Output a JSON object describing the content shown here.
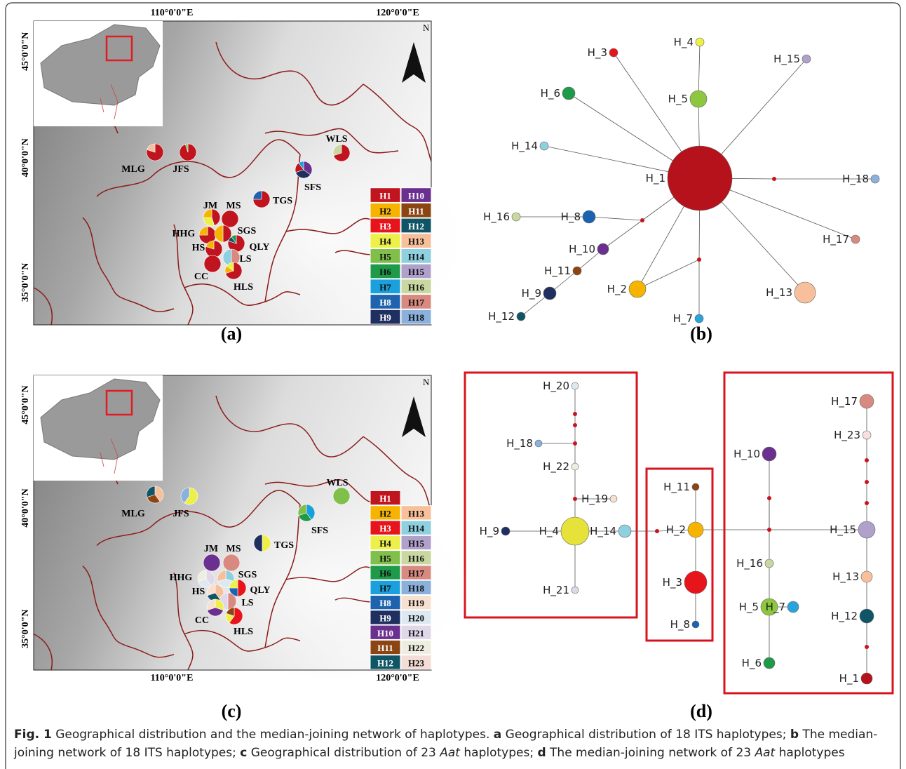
{
  "panel_a": {
    "tag": "(a)",
    "longitude_labels": [
      "110°0'0\"E",
      "120°0'0\"E"
    ],
    "latitude_labels": [
      "45°0'0\"N",
      "40°0'0\"N",
      "35°0'0\"N"
    ],
    "north": "N",
    "legend": [
      {
        "label": "H1",
        "color": "#c0141e"
      },
      {
        "label": "H2",
        "color": "#f6b300"
      },
      {
        "label": "H3",
        "color": "#e8141c"
      },
      {
        "label": "H4",
        "color": "#eef04a"
      },
      {
        "label": "H5",
        "color": "#7fbf4a"
      },
      {
        "label": "H6",
        "color": "#1f9a48"
      },
      {
        "label": "H7",
        "color": "#1aa0dc"
      },
      {
        "label": "H8",
        "color": "#1d63ad"
      },
      {
        "label": "H9",
        "color": "#1f2f5f"
      },
      {
        "label": "H10",
        "color": "#6a2f8f"
      },
      {
        "label": "H11",
        "color": "#8b4513"
      },
      {
        "label": "H12",
        "color": "#0f5566"
      },
      {
        "label": "H13",
        "color": "#f7c09a"
      },
      {
        "label": "H14",
        "color": "#8ecfe0"
      },
      {
        "label": "H15",
        "color": "#b0a0cc"
      },
      {
        "label": "H16",
        "color": "#c8d8a0"
      },
      {
        "label": "H17",
        "color": "#d88a80"
      },
      {
        "label": "H18",
        "color": "#8ab0dc"
      }
    ],
    "sites": [
      {
        "label": "MLG",
        "shares": {
          "H1": 80,
          "H13": 20
        }
      },
      {
        "label": "JFS",
        "shares": {
          "H1": 95,
          "H5": 5
        }
      },
      {
        "label": "WLS",
        "shares": {
          "H1": 70,
          "H16": 30
        }
      },
      {
        "label": "SFS",
        "shares": {
          "H10": 35,
          "H9": 35,
          "H1": 20,
          "H7": 10
        }
      },
      {
        "label": "TGS",
        "shares": {
          "H1": 75,
          "H8": 25
        }
      },
      {
        "label": "JM",
        "shares": {
          "H1": 45,
          "H4": 30,
          "H2": 25
        }
      },
      {
        "label": "MS",
        "shares": {
          "H1": 100
        }
      },
      {
        "label": "HHG",
        "shares": {
          "H1": 75,
          "H2": 25
        }
      },
      {
        "label": "SGS",
        "shares": {
          "H1": 50,
          "H2": 50
        }
      },
      {
        "label": "HS",
        "shares": {
          "H1": 80,
          "H2": 20
        }
      },
      {
        "label": "QLY",
        "shares": {
          "H1": 80,
          "H12": 10,
          "H6": 10
        }
      },
      {
        "label": "LS",
        "shares": {
          "H17": 50,
          "H14": 50
        }
      },
      {
        "label": "CC",
        "shares": {
          "H1": 100
        }
      },
      {
        "label": "HLS",
        "shares": {
          "H1": 70,
          "H2": 15,
          "H4": 15
        }
      }
    ]
  },
  "panel_b": {
    "tag": "(b)",
    "nodes": [
      {
        "label": "H_1",
        "color": "#b5121b"
      },
      {
        "label": "H_2",
        "color": "#f6b300"
      },
      {
        "label": "H_3",
        "color": "#e8141c"
      },
      {
        "label": "H_4",
        "color": "#eef04a"
      },
      {
        "label": "H_5",
        "color": "#8dc63f"
      },
      {
        "label": "H_6",
        "color": "#1f9a48"
      },
      {
        "label": "H_7",
        "color": "#29a3dc"
      },
      {
        "label": "H_8",
        "color": "#1a63b0"
      },
      {
        "label": "H_9",
        "color": "#1f2f5f"
      },
      {
        "label": "H_10",
        "color": "#6a2f8f"
      },
      {
        "label": "H_11",
        "color": "#8b4513"
      },
      {
        "label": "H_12",
        "color": "#0f5566"
      },
      {
        "label": "H_13",
        "color": "#f7c09a"
      },
      {
        "label": "H_14",
        "color": "#8ecfe0"
      },
      {
        "label": "H_15",
        "color": "#b0a0cc"
      },
      {
        "label": "H_16",
        "color": "#c8d8a0"
      },
      {
        "label": "H_17",
        "color": "#d88a80"
      },
      {
        "label": "H_18",
        "color": "#8ab0dc"
      }
    ]
  },
  "panel_c": {
    "tag": "(c)",
    "longitude_labels": [
      "110°0'0\"E",
      "120°0'0\"E"
    ],
    "latitude_labels": [
      "45°0'0\"N",
      "40°0'0\"N",
      "35°0'0\"N"
    ],
    "north": "N",
    "legend": [
      {
        "label": "H1",
        "color": "#c0141e"
      },
      {
        "label": "H2",
        "color": "#f6b300"
      },
      {
        "label": "H3",
        "color": "#e8141c"
      },
      {
        "label": "H4",
        "color": "#eef04a"
      },
      {
        "label": "H5",
        "color": "#7fbf4a"
      },
      {
        "label": "H6",
        "color": "#1f9a48"
      },
      {
        "label": "H7",
        "color": "#1aa0dc"
      },
      {
        "label": "H8",
        "color": "#1d63ad"
      },
      {
        "label": "H9",
        "color": "#1f2f5f"
      },
      {
        "label": "H10",
        "color": "#6a2f8f"
      },
      {
        "label": "H11",
        "color": "#8b4513"
      },
      {
        "label": "H12",
        "color": "#0f5566"
      },
      {
        "label": "H13",
        "color": "#f7c09a"
      },
      {
        "label": "H14",
        "color": "#8ecfe0"
      },
      {
        "label": "H15",
        "color": "#b0a0cc"
      },
      {
        "label": "H16",
        "color": "#c8d8a0"
      },
      {
        "label": "H17",
        "color": "#d88a80"
      },
      {
        "label": "H18",
        "color": "#8ab0dc"
      },
      {
        "label": "H19",
        "color": "#f8e0d0"
      },
      {
        "label": "H20",
        "color": "#dde9f0"
      },
      {
        "label": "H21",
        "color": "#e0d8e8"
      },
      {
        "label": "H22",
        "color": "#eeeee0"
      },
      {
        "label": "H23",
        "color": "#f3ddd6"
      }
    ],
    "sites": [
      {
        "label": "MLG",
        "shares": {
          "H13": 40,
          "H11": 30,
          "H12": 30
        }
      },
      {
        "label": "JFS",
        "shares": {
          "H4": 60,
          "H18": 40
        }
      },
      {
        "label": "WLS",
        "shares": {
          "H5": 100
        }
      },
      {
        "label": "SFS",
        "shares": {
          "H7": 40,
          "H6": 30,
          "H5": 30
        }
      },
      {
        "label": "TGS",
        "shares": {
          "H4": 50,
          "H9": 50
        }
      },
      {
        "label": "JM",
        "shares": {
          "H10": 100
        }
      },
      {
        "label": "MS",
        "shares": {
          "H17": 100
        }
      },
      {
        "label": "HHG",
        "shares": {
          "H21": 40,
          "H20": 30,
          "H22": 30
        }
      },
      {
        "label": "SGS",
        "shares": {
          "H14": 30,
          "H20": 40,
          "H13": 30
        }
      },
      {
        "label": "HS",
        "shares": {
          "H13": 40,
          "H12": 30,
          "H19": 30
        }
      },
      {
        "label": "QLY",
        "shares": {
          "H3": 50,
          "H8": 25,
          "H4": 25
        }
      },
      {
        "label": "LS",
        "shares": {
          "H17": 50,
          "H21": 50
        }
      },
      {
        "label": "CC",
        "shares": {
          "H4": 30,
          "H10": 40,
          "H19": 30
        }
      },
      {
        "label": "HLS",
        "shares": {
          "H3": 60,
          "H4": 20,
          "H11": 20
        }
      }
    ]
  },
  "panel_d": {
    "tag": "(d)",
    "nodes": [
      {
        "label": "H_1",
        "color": "#b5121b"
      },
      {
        "label": "H_2",
        "color": "#f6b300"
      },
      {
        "label": "H_3",
        "color": "#e8141c"
      },
      {
        "label": "H_4",
        "color": "#e7e23a"
      },
      {
        "label": "H_5",
        "color": "#8dc63f"
      },
      {
        "label": "H_6",
        "color": "#1f9a48"
      },
      {
        "label": "H_7",
        "color": "#29a3dc"
      },
      {
        "label": "H_8",
        "color": "#1a63b0"
      },
      {
        "label": "H_9",
        "color": "#1f2f5f"
      },
      {
        "label": "H_10",
        "color": "#6a2f8f"
      },
      {
        "label": "H_11",
        "color": "#8b4513"
      },
      {
        "label": "H_12",
        "color": "#0f5566"
      },
      {
        "label": "H_13",
        "color": "#f7c09a"
      },
      {
        "label": "H_14",
        "color": "#8ecfe0"
      },
      {
        "label": "H_15",
        "color": "#b0a0cc"
      },
      {
        "label": "H_16",
        "color": "#c8d8a0"
      },
      {
        "label": "H_17",
        "color": "#d88a80"
      },
      {
        "label": "H_18",
        "color": "#8ab0dc"
      },
      {
        "label": "H_19",
        "color": "#f8e0d0"
      },
      {
        "label": "H_20",
        "color": "#dde9f0"
      },
      {
        "label": "H_21",
        "color": "#e0d8e8"
      },
      {
        "label": "H_22",
        "color": "#eeeee0"
      },
      {
        "label": "H_23",
        "color": "#f8e0e0"
      }
    ]
  },
  "caption": [
    [
      {
        "text": "Fig. 1",
        "style": "bold"
      },
      {
        "text": " Geographical distribution and the median-joining network of haplotypes. ",
        "style": "plain"
      },
      {
        "text": "a",
        "style": "bold"
      },
      {
        "text": " Geographical distribution of 18 ITS haplotypes; ",
        "style": "plain"
      },
      {
        "text": "b",
        "style": "bold"
      },
      {
        "text": " The median-",
        "style": "plain"
      }
    ],
    [
      {
        "text": "joining network of 18 ITS haplotypes; ",
        "style": "plain"
      },
      {
        "text": "c",
        "style": "bold"
      },
      {
        "text": " Geographical distribution of 23 ",
        "style": "plain"
      },
      {
        "text": "Aat",
        "style": "italic"
      },
      {
        "text": " haplotypes; ",
        "style": "plain"
      },
      {
        "text": "d",
        "style": "bold"
      },
      {
        "text": " The median-joining network of 23 ",
        "style": "plain"
      },
      {
        "text": "Aat",
        "style": "italic"
      },
      {
        "text": " haplotypes",
        "style": "plain"
      }
    ]
  ]
}
